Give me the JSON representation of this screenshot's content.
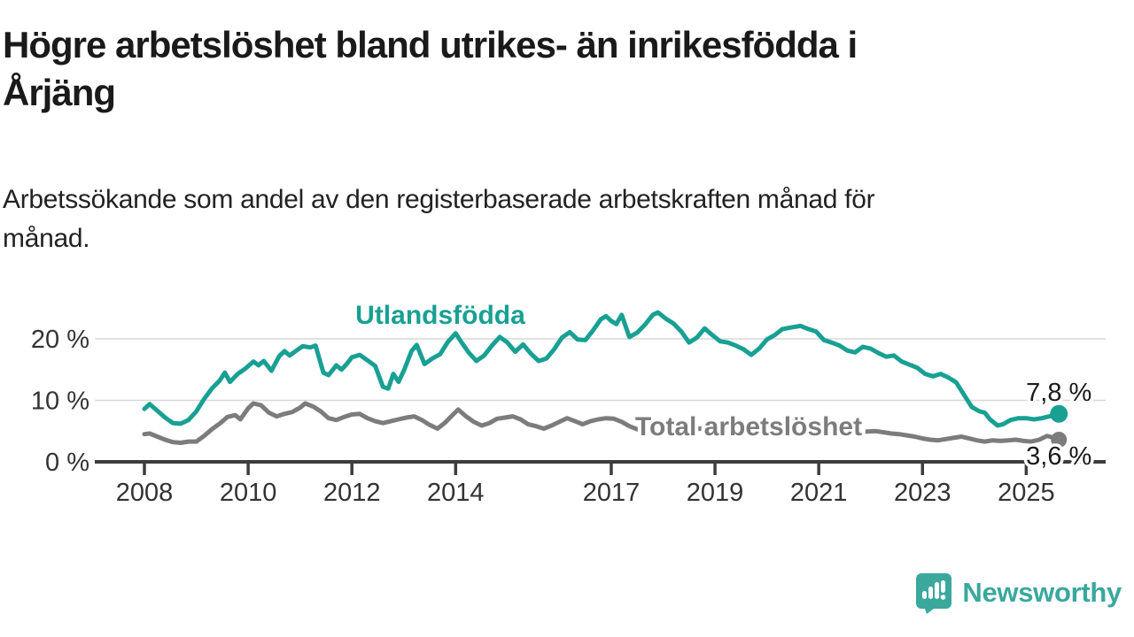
{
  "header": {
    "title": "Högre arbetslöshet bland utrikes- än inrikesfödda i Årjäng",
    "title_lines": [
      "Högre arbetslöshet bland utrikes- än inrikesfödda i",
      "Årjäng"
    ],
    "subtitle": "Arbetssökande som andel av den registerbaserade arbetskraften månad för månad.",
    "subtitle_lines": [
      "Arbetssökande som andel av den registerbaserade arbetskraften månad för",
      "månad."
    ]
  },
  "logo": {
    "text": "Newsworthy",
    "color": "#3aa89c",
    "icon": "newsworthy-chart-bubble-icon"
  },
  "colors": {
    "foreign_born_line": "#18a093",
    "total_line": "#7c7c7c",
    "axis_line": "#3d3d3d",
    "grid_line": "#d8d8d8",
    "axis_text": "#333333",
    "value_label_text": "#1a1a1a",
    "title_text": "#1a1a1a"
  },
  "chart_data": {
    "type": "line",
    "unit": "%",
    "title": "Högre arbetslöshet bland utrikes- än inrikesfödda i Årjäng",
    "xlabel": "",
    "ylabel": "Arbetssökande som andel av den registerbaserade arbetskraften",
    "x_range": [
      2008,
      2025.75
    ],
    "ylim": [
      0,
      26
    ],
    "grid": "horizontal",
    "legend_position": "direct-labels-on-lines",
    "y_ticks": [
      {
        "label": "20 %",
        "value": 20
      },
      {
        "label": "10 %",
        "value": 10
      },
      {
        "label": "0 %",
        "value": 0
      }
    ],
    "x_ticks": [
      {
        "label": "2008",
        "year": 2008
      },
      {
        "label": "2010",
        "year": 2010
      },
      {
        "label": "2012",
        "year": 2012
      },
      {
        "label": "2014",
        "year": 2014
      },
      {
        "label": "2017",
        "year": 2017
      },
      {
        "label": "2019",
        "year": 2019
      },
      {
        "label": "2021",
        "year": 2021
      },
      {
        "label": "2023",
        "year": 2023
      },
      {
        "label": "2025",
        "year": 2025
      }
    ],
    "series": [
      {
        "name": "Utlandsfödda",
        "color": "#18a093",
        "end_label": "7,8 %",
        "end_value": 7.8,
        "points": [
          [
            2008.0,
            8.6
          ],
          [
            2008.1,
            9.4
          ],
          [
            2008.25,
            8.3
          ],
          [
            2008.4,
            7.2
          ],
          [
            2008.55,
            6.3
          ],
          [
            2008.7,
            6.2
          ],
          [
            2008.85,
            6.8
          ],
          [
            2009.0,
            8.2
          ],
          [
            2009.15,
            10.2
          ],
          [
            2009.3,
            11.9
          ],
          [
            2009.45,
            13.2
          ],
          [
            2009.55,
            14.5
          ],
          [
            2009.65,
            13.0
          ],
          [
            2009.8,
            14.3
          ],
          [
            2009.95,
            15.2
          ],
          [
            2010.1,
            16.3
          ],
          [
            2010.2,
            15.7
          ],
          [
            2010.3,
            16.4
          ],
          [
            2010.45,
            14.8
          ],
          [
            2010.6,
            17.2
          ],
          [
            2010.7,
            18.0
          ],
          [
            2010.8,
            17.3
          ],
          [
            2010.95,
            18.2
          ],
          [
            2011.05,
            18.8
          ],
          [
            2011.2,
            18.6
          ],
          [
            2011.3,
            18.9
          ],
          [
            2011.45,
            14.5
          ],
          [
            2011.55,
            14.1
          ],
          [
            2011.7,
            15.7
          ],
          [
            2011.8,
            15.0
          ],
          [
            2011.9,
            15.9
          ],
          [
            2012.0,
            17.0
          ],
          [
            2012.15,
            17.4
          ],
          [
            2012.3,
            16.5
          ],
          [
            2012.45,
            15.6
          ],
          [
            2012.6,
            12.2
          ],
          [
            2012.7,
            11.9
          ],
          [
            2012.8,
            14.3
          ],
          [
            2012.9,
            13.0
          ],
          [
            2013.0,
            14.8
          ],
          [
            2013.15,
            18.0
          ],
          [
            2013.25,
            19.0
          ],
          [
            2013.4,
            15.9
          ],
          [
            2013.55,
            16.8
          ],
          [
            2013.7,
            17.5
          ],
          [
            2013.85,
            19.5
          ],
          [
            2014.0,
            20.9
          ],
          [
            2014.1,
            19.6
          ],
          [
            2014.25,
            17.8
          ],
          [
            2014.4,
            16.4
          ],
          [
            2014.55,
            17.3
          ],
          [
            2014.7,
            18.9
          ],
          [
            2014.85,
            20.3
          ],
          [
            2015.0,
            19.4
          ],
          [
            2015.15,
            17.9
          ],
          [
            2015.3,
            19.1
          ],
          [
            2015.45,
            17.6
          ],
          [
            2015.6,
            16.4
          ],
          [
            2015.75,
            16.8
          ],
          [
            2015.9,
            18.3
          ],
          [
            2016.05,
            20.2
          ],
          [
            2016.2,
            21.1
          ],
          [
            2016.35,
            19.9
          ],
          [
            2016.5,
            19.8
          ],
          [
            2016.65,
            21.4
          ],
          [
            2016.8,
            23.2
          ],
          [
            2016.9,
            23.7
          ],
          [
            2017.0,
            22.9
          ],
          [
            2017.1,
            22.4
          ],
          [
            2017.2,
            23.9
          ],
          [
            2017.35,
            20.3
          ],
          [
            2017.5,
            21.0
          ],
          [
            2017.65,
            22.3
          ],
          [
            2017.8,
            23.9
          ],
          [
            2017.9,
            24.3
          ],
          [
            2018.05,
            23.3
          ],
          [
            2018.2,
            22.5
          ],
          [
            2018.35,
            21.2
          ],
          [
            2018.5,
            19.4
          ],
          [
            2018.65,
            20.2
          ],
          [
            2018.8,
            21.7
          ],
          [
            2018.95,
            20.6
          ],
          [
            2019.1,
            19.6
          ],
          [
            2019.25,
            19.4
          ],
          [
            2019.4,
            18.9
          ],
          [
            2019.55,
            18.3
          ],
          [
            2019.7,
            17.4
          ],
          [
            2019.85,
            18.4
          ],
          [
            2020.0,
            19.9
          ],
          [
            2020.15,
            20.6
          ],
          [
            2020.3,
            21.6
          ],
          [
            2020.5,
            21.9
          ],
          [
            2020.65,
            22.1
          ],
          [
            2020.8,
            21.6
          ],
          [
            2020.95,
            21.2
          ],
          [
            2021.1,
            19.8
          ],
          [
            2021.25,
            19.4
          ],
          [
            2021.4,
            18.9
          ],
          [
            2021.55,
            18.1
          ],
          [
            2021.7,
            17.8
          ],
          [
            2021.85,
            18.7
          ],
          [
            2022.0,
            18.4
          ],
          [
            2022.15,
            17.7
          ],
          [
            2022.3,
            17.1
          ],
          [
            2022.45,
            17.3
          ],
          [
            2022.6,
            16.3
          ],
          [
            2022.75,
            15.8
          ],
          [
            2022.9,
            15.3
          ],
          [
            2023.05,
            14.3
          ],
          [
            2023.2,
            13.9
          ],
          [
            2023.35,
            14.3
          ],
          [
            2023.5,
            13.7
          ],
          [
            2023.65,
            12.9
          ],
          [
            2023.8,
            10.9
          ],
          [
            2023.95,
            8.9
          ],
          [
            2024.1,
            8.2
          ],
          [
            2024.2,
            8.0
          ],
          [
            2024.3,
            6.9
          ],
          [
            2024.45,
            5.9
          ],
          [
            2024.55,
            6.1
          ],
          [
            2024.7,
            6.8
          ],
          [
            2024.85,
            7.1
          ],
          [
            2025.0,
            7.1
          ],
          [
            2025.15,
            6.9
          ],
          [
            2025.3,
            7.1
          ],
          [
            2025.45,
            7.4
          ],
          [
            2025.63,
            7.8
          ]
        ]
      },
      {
        "name": "Total arbetslöshet",
        "color": "#7c7c7c",
        "end_label": "3,6 %",
        "end_value": 3.6,
        "points": [
          [
            2008.0,
            4.5
          ],
          [
            2008.1,
            4.6
          ],
          [
            2008.25,
            4.1
          ],
          [
            2008.4,
            3.6
          ],
          [
            2008.55,
            3.2
          ],
          [
            2008.7,
            3.1
          ],
          [
            2008.85,
            3.3
          ],
          [
            2009.0,
            3.3
          ],
          [
            2009.15,
            4.2
          ],
          [
            2009.3,
            5.3
          ],
          [
            2009.45,
            6.2
          ],
          [
            2009.6,
            7.3
          ],
          [
            2009.75,
            7.6
          ],
          [
            2009.85,
            6.9
          ],
          [
            2010.0,
            8.7
          ],
          [
            2010.1,
            9.5
          ],
          [
            2010.25,
            9.2
          ],
          [
            2010.4,
            8.0
          ],
          [
            2010.55,
            7.4
          ],
          [
            2010.7,
            7.8
          ],
          [
            2010.85,
            8.1
          ],
          [
            2011.0,
            8.8
          ],
          [
            2011.1,
            9.5
          ],
          [
            2011.25,
            9.0
          ],
          [
            2011.4,
            8.2
          ],
          [
            2011.55,
            7.1
          ],
          [
            2011.7,
            6.8
          ],
          [
            2011.85,
            7.3
          ],
          [
            2012.0,
            7.7
          ],
          [
            2012.15,
            7.8
          ],
          [
            2012.3,
            7.1
          ],
          [
            2012.45,
            6.6
          ],
          [
            2012.6,
            6.3
          ],
          [
            2012.75,
            6.6
          ],
          [
            2012.9,
            6.9
          ],
          [
            2013.05,
            7.2
          ],
          [
            2013.2,
            7.4
          ],
          [
            2013.35,
            6.8
          ],
          [
            2013.5,
            6.0
          ],
          [
            2013.65,
            5.4
          ],
          [
            2013.8,
            6.4
          ],
          [
            2013.95,
            7.7
          ],
          [
            2014.05,
            8.5
          ],
          [
            2014.2,
            7.4
          ],
          [
            2014.35,
            6.5
          ],
          [
            2014.5,
            5.9
          ],
          [
            2014.65,
            6.3
          ],
          [
            2014.8,
            7.0
          ],
          [
            2014.95,
            7.2
          ],
          [
            2015.1,
            7.4
          ],
          [
            2015.25,
            6.9
          ],
          [
            2015.4,
            6.1
          ],
          [
            2015.55,
            5.8
          ],
          [
            2015.7,
            5.4
          ],
          [
            2015.85,
            5.9
          ],
          [
            2016.0,
            6.5
          ],
          [
            2016.15,
            7.1
          ],
          [
            2016.3,
            6.6
          ],
          [
            2016.45,
            6.1
          ],
          [
            2016.6,
            6.6
          ],
          [
            2016.75,
            6.9
          ],
          [
            2016.9,
            7.1
          ],
          [
            2017.05,
            7.0
          ],
          [
            2017.2,
            6.5
          ],
          [
            2017.35,
            5.8
          ],
          [
            2017.5,
            5.3
          ],
          [
            2017.7,
            5.6
          ],
          [
            2017.9,
            6.1
          ],
          [
            2018.1,
            5.8
          ],
          [
            2018.3,
            5.4
          ],
          [
            2018.5,
            5.1
          ],
          [
            2018.7,
            5.4
          ],
          [
            2018.9,
            5.5
          ],
          [
            2019.1,
            5.2
          ],
          [
            2019.3,
            5.0
          ],
          [
            2019.5,
            4.8
          ],
          [
            2019.7,
            4.9
          ],
          [
            2019.9,
            5.2
          ],
          [
            2020.1,
            5.6
          ],
          [
            2020.3,
            5.9
          ],
          [
            2020.5,
            6.1
          ],
          [
            2020.7,
            5.9
          ],
          [
            2020.9,
            5.5
          ],
          [
            2021.1,
            5.2
          ],
          [
            2021.3,
            5.0
          ],
          [
            2021.5,
            4.9
          ],
          [
            2021.7,
            4.8
          ],
          [
            2021.9,
            4.9
          ],
          [
            2022.1,
            5.0
          ],
          [
            2022.25,
            4.8
          ],
          [
            2022.4,
            4.6
          ],
          [
            2022.55,
            4.5
          ],
          [
            2022.7,
            4.3
          ],
          [
            2022.85,
            4.1
          ],
          [
            2023.0,
            3.8
          ],
          [
            2023.15,
            3.6
          ],
          [
            2023.3,
            3.5
          ],
          [
            2023.45,
            3.7
          ],
          [
            2023.6,
            3.9
          ],
          [
            2023.75,
            4.1
          ],
          [
            2023.9,
            3.8
          ],
          [
            2024.05,
            3.5
          ],
          [
            2024.2,
            3.3
          ],
          [
            2024.35,
            3.5
          ],
          [
            2024.5,
            3.4
          ],
          [
            2024.65,
            3.5
          ],
          [
            2024.8,
            3.6
          ],
          [
            2024.95,
            3.4
          ],
          [
            2025.1,
            3.3
          ],
          [
            2025.25,
            3.6
          ],
          [
            2025.4,
            4.2
          ],
          [
            2025.55,
            3.9
          ],
          [
            2025.63,
            3.6
          ]
        ]
      }
    ]
  }
}
